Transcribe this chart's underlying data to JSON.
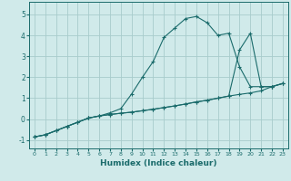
{
  "xlabel": "Humidex (Indice chaleur)",
  "background_color": "#d0eaea",
  "grid_color": "#a8cccc",
  "line_color": "#1a6b6b",
  "xlim": [
    -0.5,
    23.5
  ],
  "ylim": [
    -1.4,
    5.6
  ],
  "xticks": [
    0,
    1,
    2,
    3,
    4,
    5,
    6,
    7,
    8,
    9,
    10,
    11,
    12,
    13,
    14,
    15,
    16,
    17,
    18,
    19,
    20,
    21,
    22,
    23
  ],
  "yticks": [
    -1,
    0,
    1,
    2,
    3,
    4,
    5
  ],
  "series1_x": [
    0,
    1,
    2,
    3,
    4,
    5,
    6,
    7,
    8,
    9,
    10,
    11,
    12,
    13,
    14,
    15,
    16,
    17,
    18,
    19,
    20,
    21,
    22,
    23
  ],
  "series1_y": [
    -0.85,
    -0.75,
    -0.55,
    -0.35,
    -0.15,
    0.05,
    0.15,
    0.22,
    0.28,
    0.33,
    0.4,
    0.47,
    0.55,
    0.63,
    0.72,
    0.82,
    0.9,
    1.0,
    1.1,
    1.18,
    1.25,
    1.35,
    1.55,
    1.7
  ],
  "series2_x": [
    0,
    1,
    2,
    3,
    4,
    5,
    6,
    7,
    8,
    9,
    10,
    11,
    12,
    13,
    14,
    15,
    16,
    17,
    18,
    19,
    20,
    21,
    22,
    23
  ],
  "series2_y": [
    -0.85,
    -0.75,
    -0.55,
    -0.35,
    -0.15,
    0.05,
    0.15,
    0.22,
    0.28,
    0.33,
    0.4,
    0.47,
    0.55,
    0.63,
    0.72,
    0.82,
    0.9,
    1.0,
    1.1,
    3.3,
    4.1,
    1.55,
    1.55,
    1.7
  ],
  "series3_x": [
    0,
    1,
    2,
    3,
    4,
    5,
    6,
    7,
    8,
    9,
    10,
    11,
    12,
    13,
    14,
    15,
    16,
    17,
    18,
    19,
    20,
    21,
    22,
    23
  ],
  "series3_y": [
    -0.85,
    -0.75,
    -0.55,
    -0.35,
    -0.15,
    0.05,
    0.15,
    0.3,
    0.5,
    1.2,
    2.0,
    2.75,
    3.9,
    4.35,
    4.8,
    4.9,
    4.6,
    4.0,
    4.1,
    2.5,
    1.55,
    1.55,
    1.55,
    1.7
  ]
}
